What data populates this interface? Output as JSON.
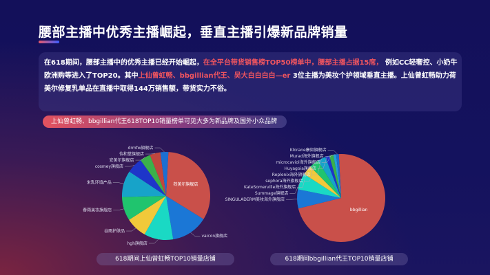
{
  "title": "腰部主播中优秀主播崛起，垂直主播引爆新品牌销量",
  "paragraph": {
    "p1": "在618期间，腰部主播中的优秀主播已经开始崛起，",
    "p2_hl": "在全平台带货销售榜TOP50榜单中，腰部主播占据15席，",
    "p3": " 例如CC轻奢控、小奶牛欧洲购等进入了TOP20。其中",
    "p4_hl": "上仙曾虹畅、bbgillian代王、吴大白白白白—er",
    "p5": " 3位主播为美妆个护领域垂直主播。上仙曾虹畅助力荷美尔修复乳单品在直播中取得144万销售额，带货实力不俗。"
  },
  "highlight_pill": "上仙曾虹畅、bbgillian代王618TOP10销量榜单可见大多为新品牌及国外小众品牌",
  "colors": {
    "accent_red": "#f0555f",
    "background": "#14125e"
  },
  "chart_data": [
    {
      "type": "pie",
      "title": "618期间上仙曾虹畅TOP10销量店铺",
      "categories": [
        "荷美尔旗舰店",
        "vaicon旗舰店",
        "hgh旗舰店",
        "谷雨护肤品",
        "春雨美妆旗舰店",
        "米乳环境产品",
        "cosmey旗舰店",
        "安美尔旗舰店",
        "怡和堂旗舰店",
        "drmfw旗舰店"
      ],
      "values": [
        34,
        14,
        11,
        8,
        9,
        10,
        6,
        4,
        4,
        3
      ],
      "colors": [
        "#c9504a",
        "#1b77d6",
        "#1ad9c4",
        "#f1c93a",
        "#20c46e",
        "#17a3c9",
        "#1e35c9",
        "#3bb04a",
        "#c0463e",
        "#1d6fd1"
      ]
    },
    {
      "type": "pie",
      "title": "618期间bbgillian代王TOP10销量店铺",
      "categories": [
        "bbgillian",
        "SINGULADERM美妆海外旗舰店",
        "Summage旗舰店",
        "KateSomerville海外旗舰店",
        "sephora海外旗舰店",
        "Replenix海外旗舰店",
        "Huyagoia旗舰店",
        "microcaviol海外旗舰店",
        "Murad海外旗舰店",
        "Klorane康如旗舰店"
      ],
      "values": [
        72,
        7,
        6,
        3.5,
        3.5,
        3,
        1.5,
        1.5,
        1,
        1
      ],
      "colors": [
        "#c9504a",
        "#1b77d6",
        "#1ad9c4",
        "#f1c93a",
        "#20c46e",
        "#17a3c9",
        "#1e35c9",
        "#3bb04a",
        "#24a3d6",
        "#1d6fd1"
      ]
    }
  ]
}
